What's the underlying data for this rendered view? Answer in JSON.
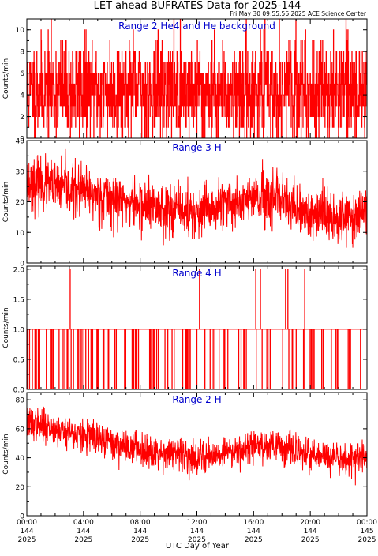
{
  "title": "LET ahead BUFRATES Data for 2025-144",
  "timestamp": "Fri May 30 09:55:56 2025 ACE Science Center",
  "xlabel": "UTC Day of Year",
  "x_ticks": [
    {
      "time": "00:00",
      "doy": "144",
      "year": "2025"
    },
    {
      "time": "04:00",
      "doy": "144",
      "year": "2025"
    },
    {
      "time": "08:00",
      "doy": "144",
      "year": "2025"
    },
    {
      "time": "12:00",
      "doy": "144",
      "year": "2025"
    },
    {
      "time": "16:00",
      "doy": "144",
      "year": "2025"
    },
    {
      "time": "20:00",
      "doy": "144",
      "year": "2025"
    },
    {
      "time": "00:00",
      "doy": "145",
      "year": "2025"
    }
  ],
  "colors": {
    "data": "#ff0000",
    "panel_label": "#0000cc",
    "axes": "#000000",
    "text": "#000000"
  },
  "chart_data": [
    {
      "type": "line",
      "title": "Range 2 He4 and He background",
      "ylabel": "Counts/min",
      "xlim": [
        0,
        24
      ],
      "ylim": [
        0,
        11
      ],
      "yticks": [
        0,
        2,
        4,
        6,
        8,
        10
      ],
      "series": [
        {
          "x_range": [
            0,
            24
          ],
          "points": 1440,
          "discrete": true,
          "mean": 4.4,
          "spread": 2.3,
          "max": 11,
          "seed": 11,
          "values_summary": "integer counts, mostly 1-8, occasional spikes to 10-11, mean about 4"
        }
      ]
    },
    {
      "type": "line",
      "title": "Range 3 H",
      "ylabel": "Counts/min",
      "xlim": [
        0,
        24
      ],
      "ylim": [
        0,
        40
      ],
      "yticks": [
        0,
        10,
        20,
        30,
        40
      ],
      "series": [
        {
          "x_range": [
            0,
            24
          ],
          "points": 1440,
          "discrete": false,
          "trend": [
            [
              0,
              26
            ],
            [
              2,
              25
            ],
            [
              4,
              23
            ],
            [
              6,
              21
            ],
            [
              8,
              19
            ],
            [
              10,
              18
            ],
            [
              12,
              16
            ],
            [
              14,
              19
            ],
            [
              16,
              21
            ],
            [
              18,
              20
            ],
            [
              19,
              17
            ],
            [
              20,
              16
            ],
            [
              22,
              15
            ],
            [
              24,
              16
            ]
          ],
          "spread": 4.2,
          "min": 5,
          "max": 39,
          "seed": 23
        }
      ]
    },
    {
      "type": "line",
      "title": "Range 4 H",
      "ylabel": "Counts/min",
      "xlim": [
        0,
        24
      ],
      "ylim": [
        0,
        2.05
      ],
      "yticks": [
        0.0,
        0.5,
        1.0,
        1.5,
        2.0
      ],
      "ytick_labels": [
        "0.0",
        "0.5",
        "1.0",
        "1.5",
        "2.0"
      ],
      "series": [
        {
          "x_range": [
            0,
            24
          ],
          "points": 1440,
          "discrete": true,
          "baseline": 1,
          "drop_probability": 0.09,
          "spikes_at_hours": [
            3.06,
            12.17,
            16.15,
            16.47,
            18.25,
            18.41,
            19.6
          ],
          "spike_value": 2
        }
      ]
    },
    {
      "type": "line",
      "title": "Range 2 H",
      "ylabel": "Counts/min",
      "xlim": [
        0,
        24
      ],
      "ylim": [
        0,
        85
      ],
      "yticks": [
        0,
        20,
        40,
        60,
        80
      ],
      "series": [
        {
          "x_range": [
            0,
            24
          ],
          "points": 1440,
          "discrete": false,
          "trend": [
            [
              0,
              64
            ],
            [
              2,
              60
            ],
            [
              4,
              55
            ],
            [
              6,
              50
            ],
            [
              8,
              46
            ],
            [
              10,
              43
            ],
            [
              12,
              40
            ],
            [
              14,
              44
            ],
            [
              16,
              48
            ],
            [
              17.5,
              49
            ],
            [
              18.5,
              46
            ],
            [
              19.5,
              42
            ],
            [
              21,
              40
            ],
            [
              24,
              39
            ]
          ],
          "spread": 5.6,
          "min": 17,
          "max": 84,
          "seed": 37
        }
      ]
    }
  ]
}
